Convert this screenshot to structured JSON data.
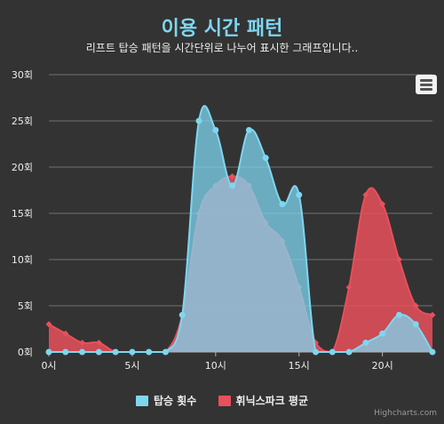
{
  "chart_data": {
    "type": "area",
    "title": "이용 시간 패턴",
    "subtitle": "리프트 탑승 패턴을 시간단위로 나누어 표시한 그래프입니다..",
    "x": [
      0,
      1,
      2,
      3,
      4,
      5,
      6,
      7,
      8,
      9,
      10,
      11,
      12,
      13,
      14,
      15,
      16,
      17,
      18,
      19,
      20,
      21,
      22,
      23
    ],
    "x_tick_values": [
      0,
      5,
      10,
      15,
      20
    ],
    "x_tick_labels": [
      "0시",
      "5시",
      "10시",
      "15시",
      "20시"
    ],
    "xlim": [
      0,
      23
    ],
    "ylim": [
      0,
      30
    ],
    "y_tick_values": [
      0,
      5,
      10,
      15,
      20,
      25,
      30
    ],
    "y_tick_labels": [
      "0회",
      "5회",
      "10회",
      "15회",
      "20회",
      "25회",
      "30회"
    ],
    "grid": true,
    "legend_position": "bottom",
    "series": [
      {
        "name": "휘닉스파크 평균",
        "color": "#e8505b",
        "values": [
          3,
          2,
          1,
          1,
          0,
          0,
          0,
          0,
          4,
          15,
          18,
          19,
          18,
          14,
          12,
          7,
          1,
          0,
          7,
          17,
          16,
          10,
          5,
          4
        ]
      },
      {
        "name": "탑승 횟수",
        "color": "#7fd6f0",
        "values": [
          0,
          0,
          0,
          0,
          0,
          0,
          0,
          0,
          4,
          25,
          24,
          18,
          24,
          21,
          16,
          17,
          0,
          0,
          0,
          1,
          2,
          4,
          3,
          0
        ]
      }
    ],
    "legend_order": [
      "탑승 횟수",
      "휘닉스파크 평균"
    ]
  },
  "credits": "Highcharts.com",
  "menu_icon": "hamburger-menu-icon"
}
